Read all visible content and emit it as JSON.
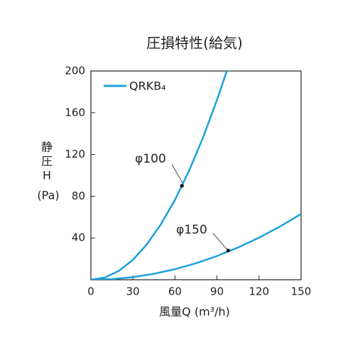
{
  "chart_data": {
    "type": "line",
    "title": "圧損特性(給気)",
    "xlabel": "風量Q (m³/h)",
    "ylabel_lines": [
      "静",
      "圧",
      "H",
      "(Pa)"
    ],
    "legend": "QRKB₄",
    "color": "#1ba1dc",
    "series": [
      {
        "name": "φ100",
        "x": [
          0,
          10,
          20,
          30,
          40,
          50,
          60,
          70,
          80,
          90,
          97
        ],
        "values": [
          0,
          2.1,
          8.5,
          19.1,
          34.0,
          53.2,
          76.5,
          104.2,
          136.1,
          172.2,
          200
        ],
        "point": [
          65,
          90
        ]
      },
      {
        "name": "φ150",
        "x": [
          0,
          15,
          30,
          45,
          60,
          75,
          90,
          105,
          120,
          135,
          150
        ],
        "values": [
          0,
          0.6,
          2.5,
          5.7,
          10.1,
          15.8,
          22.7,
          30.9,
          40.3,
          51.0,
          63.0
        ],
        "point": [
          98,
          28
        ]
      }
    ],
    "xlim": [
      0,
      150
    ],
    "xticks": [
      0,
      30,
      60,
      90,
      120,
      150
    ],
    "ylim": [
      0,
      200
    ],
    "yticks": [
      40,
      80,
      120,
      160,
      200
    ]
  }
}
